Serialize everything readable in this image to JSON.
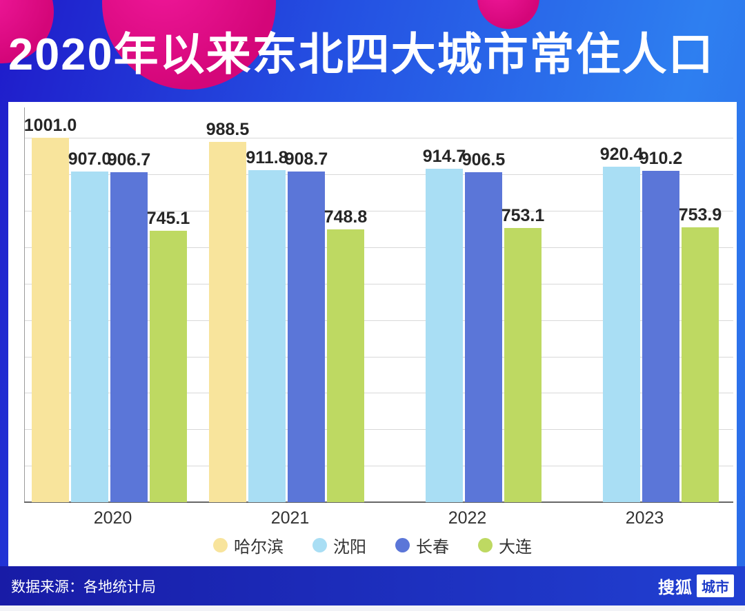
{
  "title": "2020年以来东北四大城市常住人口",
  "footer": {
    "source": "数据来源：各地统计局",
    "brand": "搜狐",
    "brand_badge": "城市"
  },
  "colors": {
    "accent_magenta": "#e0087f",
    "background_dark_blue": "#1f1bca",
    "background_bright_blue": "#2e7ff0",
    "harbin_yellow": "#F8E49C",
    "shenyang_light_blue": "#A9DEF4",
    "changchun_indigo": "#5B76D8",
    "dalian_green": "#BED962"
  },
  "chart_data": {
    "type": "bar",
    "title": "2020年以来东北四大城市常住人口",
    "categories": [
      "2020",
      "2021",
      "2022",
      "2023"
    ],
    "series": [
      {
        "name": "哈尔滨",
        "color": "#F8E49C",
        "values": [
          1001.0,
          988.5,
          null,
          null
        ]
      },
      {
        "name": "沈阳",
        "color": "#A9DEF4",
        "values": [
          907.0,
          911.8,
          914.7,
          920.4
        ]
      },
      {
        "name": "长春",
        "color": "#5B76D8",
        "values": [
          906.7,
          908.7,
          906.5,
          910.2
        ]
      },
      {
        "name": "大连",
        "color": "#BED962",
        "values": [
          745.1,
          748.8,
          753.1,
          753.9
        ]
      }
    ],
    "xlabel": "",
    "ylabel": "",
    "ylim": [
      0,
      1080
    ],
    "grid": true,
    "grid_step": 100,
    "legend_position": "bottom",
    "value_labels": true,
    "value_label_decimals": 1
  }
}
